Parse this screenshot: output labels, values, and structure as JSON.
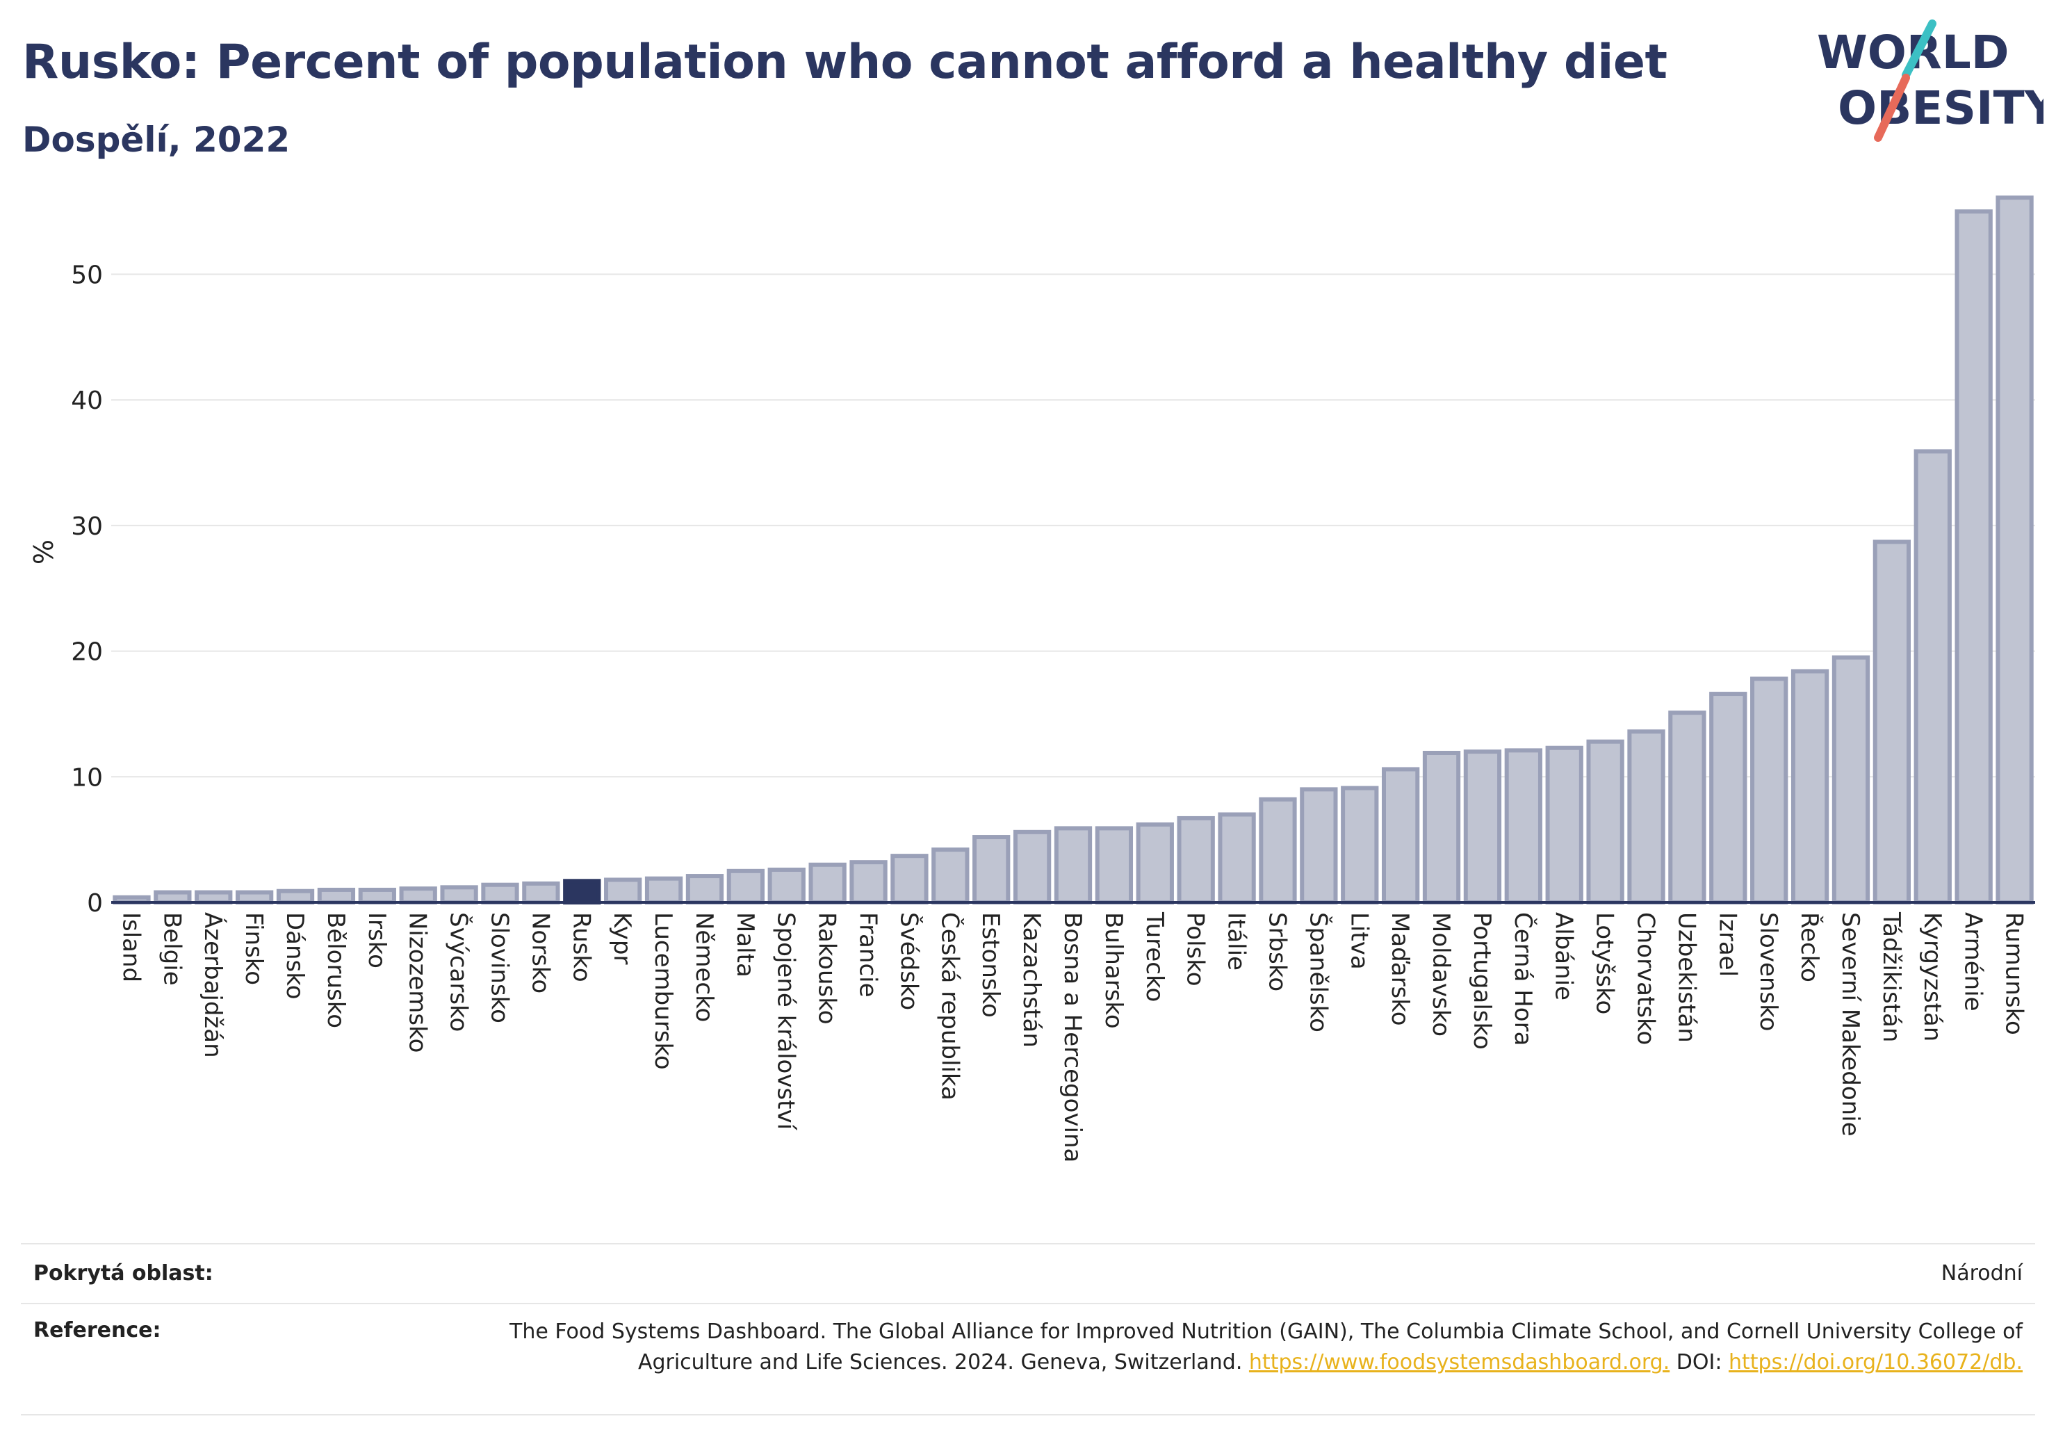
{
  "header": {
    "title": "Rusko: Percent of population who cannot afford a healthy diet",
    "subtitle": "Dospělí, 2022"
  },
  "logo": {
    "line1": "WORLD",
    "line2": "OBESITY",
    "colors": {
      "text": "#2b3660",
      "slash_teal": "#3cc0c4",
      "slash_coral": "#e76a5a"
    }
  },
  "colors": {
    "bar_fill": "#c0c4d2",
    "bar_stroke": "#9aa0b8",
    "highlight": "#2b3660",
    "grid": "#e6e6e6",
    "axis": "#2b3660"
  },
  "chart_data": {
    "type": "bar",
    "ylabel": "%",
    "ylim": [
      0,
      58
    ],
    "yticks": [
      0,
      10,
      20,
      30,
      40,
      50
    ],
    "grid": true,
    "highlight_category": "Rusko",
    "categories": [
      "Island",
      "Belgie",
      "Ázerbajdžán",
      "Finsko",
      "Dánsko",
      "Bělorusko",
      "Irsko",
      "Nizozemsko",
      "Švýcarsko",
      "Slovinsko",
      "Norsko",
      "Rusko",
      "Kypr",
      "Lucembursko",
      "Německo",
      "Malta",
      "Spojené království",
      "Rakousko",
      "Francie",
      "Švédsko",
      "Česká republika",
      "Estonsko",
      "Kazachstán",
      "Bosna a Hercegovina",
      "Bulharsko",
      "Turecko",
      "Polsko",
      "Itálie",
      "Srbsko",
      "Španělsko",
      "Litva",
      "Maďarsko",
      "Moldavsko",
      "Portugalsko",
      "Černá Hora",
      "Albánie",
      "Lotyšsko",
      "Chorvatsko",
      "Uzbekistán",
      "Izrael",
      "Slovensko",
      "Řecko",
      "Severní Makedonie",
      "Tádžikistán",
      "Kyrgyzstán",
      "Arménie",
      "Rumunsko"
    ],
    "values": [
      0.4,
      0.8,
      0.8,
      0.8,
      0.9,
      1.0,
      1.0,
      1.1,
      1.2,
      1.4,
      1.5,
      1.7,
      1.8,
      1.9,
      2.1,
      2.5,
      2.6,
      3.0,
      3.2,
      3.7,
      4.2,
      5.2,
      5.6,
      5.9,
      5.9,
      6.2,
      6.7,
      7.0,
      8.2,
      9.0,
      9.1,
      10.6,
      11.9,
      12.0,
      12.1,
      12.3,
      12.8,
      13.6,
      15.1,
      16.6,
      17.8,
      18.4,
      19.5,
      28.7,
      35.9,
      55.0,
      56.1
    ]
  },
  "footer": {
    "coverage_label": "Pokrytá oblast:",
    "coverage_value": "Národní",
    "reference_label": "Reference:",
    "reference_text": "The Food Systems Dashboard. The Global Alliance for Improved Nutrition (GAIN), The Columbia Climate School, and Cornell University College of Agriculture and Life Sciences. 2024. Geneva, Switzerland.",
    "reference_link1": "https://www.foodsystemsdashboard.org.",
    "reference_doi_label": "DOI:",
    "reference_link2": "https://doi.org/10.36072/db."
  }
}
